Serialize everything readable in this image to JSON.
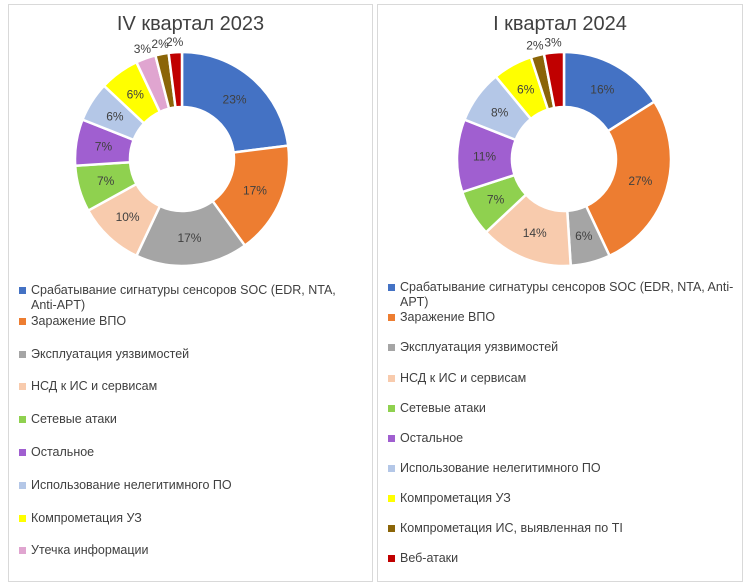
{
  "chart_data": [
    {
      "type": "pie",
      "style": "donut",
      "title": "IV квартал 2023",
      "slices": [
        {
          "label": "Срабатывание сигнатуры сенсоров SOC (EDR, NTA, Anti-APT)",
          "value": 23,
          "text": "23%",
          "color": "#4472c4"
        },
        {
          "label": "Заражение ВПО",
          "value": 17,
          "text": "17%",
          "color": "#ed7d31"
        },
        {
          "label": "Эксплуатация уязвимостей",
          "value": 17,
          "text": "17%",
          "color": "#a5a5a5"
        },
        {
          "label": "НСД к ИС и сервисам",
          "value": 10,
          "text": "10%",
          "color": "#f8cbad"
        },
        {
          "label": "Сетевые атаки",
          "value": 7,
          "text": "7%",
          "color": "#8fd14f"
        },
        {
          "label": "Остальное",
          "value": 7,
          "text": "7%",
          "color": "#a05fd0"
        },
        {
          "label": "Использование нелегитимного ПО",
          "value": 6,
          "text": "6%",
          "color": "#b4c7e7"
        },
        {
          "label": "Компрометация УЗ",
          "value": 6,
          "text": "6%",
          "color": "#ffff00"
        },
        {
          "label": "Утечка информации",
          "value": 3,
          "text": "3%",
          "color": "#e0a5d0"
        },
        {
          "label": "",
          "value": 2,
          "text": "2%",
          "color": "#8b6508"
        },
        {
          "label": "",
          "value": 2,
          "text": "2%",
          "color": "#c00000"
        }
      ],
      "legend_count": 9,
      "legend_position": "bottom"
    },
    {
      "type": "pie",
      "style": "donut",
      "title": "I квартал 2024",
      "slices": [
        {
          "label": "Срабатывание сигнатуры сенсоров SOC (EDR, NTA, Anti-APT)",
          "value": 16,
          "text": "16%",
          "color": "#4472c4"
        },
        {
          "label": "Заражение ВПО",
          "value": 27,
          "text": "27%",
          "color": "#ed7d31"
        },
        {
          "label": "Эксплуатация уязвимостей",
          "value": 6,
          "text": "6%",
          "color": "#a5a5a5"
        },
        {
          "label": "НСД к ИС и сервисам",
          "value": 14,
          "text": "14%",
          "color": "#f8cbad"
        },
        {
          "label": "Сетевые атаки",
          "value": 7,
          "text": "7%",
          "color": "#8fd14f"
        },
        {
          "label": "Остальное",
          "value": 11,
          "text": "11%",
          "color": "#a05fd0"
        },
        {
          "label": "Использование нелегитимного ПО",
          "value": 8,
          "text": "8%",
          "color": "#b4c7e7"
        },
        {
          "label": "Компрометация УЗ",
          "value": 6,
          "text": "6%",
          "color": "#ffff00"
        },
        {
          "label": "Компрометация ИС, выявленная по TI",
          "value": 2,
          "text": "2%",
          "color": "#8b6508"
        },
        {
          "label": "Веб-атаки",
          "value": 3,
          "text": "3%",
          "color": "#c00000"
        }
      ],
      "legend_count": 10,
      "legend_position": "bottom"
    }
  ]
}
